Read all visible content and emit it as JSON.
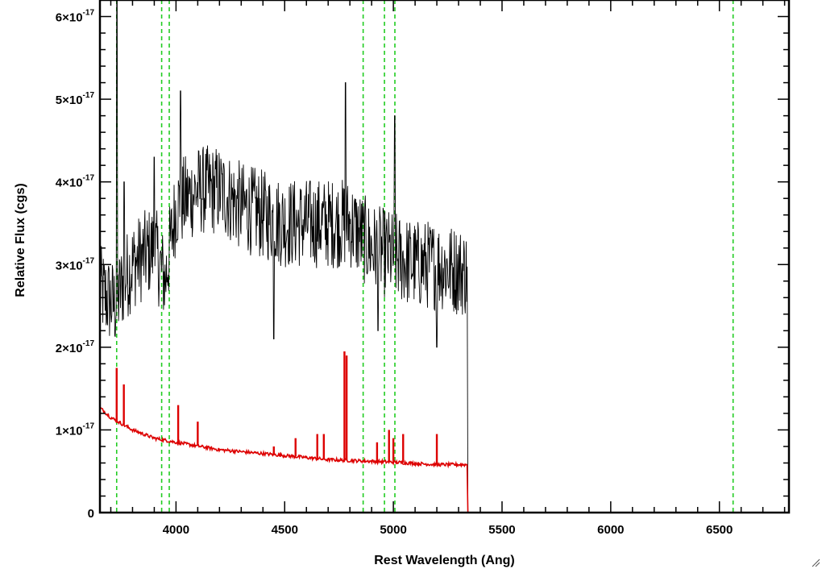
{
  "chart_data": {
    "type": "line",
    "xlabel": "Rest Wavelength (Ang)",
    "ylabel": "Relative Flux (cgs)",
    "xlim": [
      3650,
      6820
    ],
    "ylim": [
      0,
      6.2e-17
    ],
    "x_ticks": [
      {
        "value": 4000,
        "label": "4000"
      },
      {
        "value": 4500,
        "label": "4500"
      },
      {
        "value": 5000,
        "label": "5000"
      },
      {
        "value": 5500,
        "label": "5500"
      },
      {
        "value": 6000,
        "label": "6000"
      },
      {
        "value": 6500,
        "label": "6500"
      }
    ],
    "y_ticks": [
      {
        "value": 0,
        "mantissa": "0",
        "exponent": ""
      },
      {
        "value": 1e-17,
        "mantissa": "1×10",
        "exponent": "-17"
      },
      {
        "value": 2e-17,
        "mantissa": "2×10",
        "exponent": "-17"
      },
      {
        "value": 3e-17,
        "mantissa": "3×10",
        "exponent": "-17"
      },
      {
        "value": 4e-17,
        "mantissa": "4×10",
        "exponent": "-17"
      },
      {
        "value": 5e-17,
        "mantissa": "5×10",
        "exponent": "-17"
      },
      {
        "value": 6e-17,
        "mantissa": "6×10",
        "exponent": "-17"
      }
    ],
    "vertical_lines": [
      3727,
      3934,
      3969,
      4861,
      4959,
      5007,
      6563
    ],
    "grid": false,
    "series": [
      {
        "color": "#000000",
        "noise_amplitude": 5.5e-18,
        "x_range": [
          3650,
          5340
        ],
        "envelope": [
          [
            3650,
            2.7e-17
          ],
          [
            3680,
            2.6e-17
          ],
          [
            3720,
            2.5e-17
          ],
          [
            3760,
            2.8e-17
          ],
          [
            3800,
            3e-17
          ],
          [
            3900,
            3.2e-17
          ],
          [
            3950,
            2.8e-17
          ],
          [
            4000,
            3.7e-17
          ],
          [
            4100,
            3.9e-17
          ],
          [
            4200,
            3.9e-17
          ],
          [
            4300,
            3.7e-17
          ],
          [
            4500,
            3.5e-17
          ],
          [
            4700,
            3.5e-17
          ],
          [
            4800,
            3.5e-17
          ],
          [
            4900,
            3.2e-17
          ],
          [
            5000,
            3.1e-17
          ],
          [
            5100,
            3e-17
          ],
          [
            5200,
            3e-17
          ],
          [
            5340,
            2.9e-17
          ]
        ],
        "spikes": [
          [
            3727,
            6.2e-17
          ],
          [
            3760,
            4e-17
          ],
          [
            3900,
            4.3e-17
          ],
          [
            4020,
            5.1e-17
          ],
          [
            4780,
            5.2e-17
          ],
          [
            5007,
            4.8e-17
          ],
          [
            4450,
            2.1e-17
          ],
          [
            4930,
            2.2e-17
          ],
          [
            5200,
            2e-17
          ]
        ],
        "drop_to": 0,
        "drop_at": 5343
      },
      {
        "color": "#dd0000",
        "continuum": [
          [
            3650,
            1.27e-17
          ],
          [
            3700,
            1.15e-17
          ],
          [
            3800,
            1e-17
          ],
          [
            3900,
            9e-18
          ],
          [
            4000,
            8.5e-18
          ],
          [
            4200,
            7.6e-18
          ],
          [
            4500,
            6.9e-18
          ],
          [
            4700,
            6.4e-18
          ],
          [
            5000,
            6.1e-18
          ],
          [
            5200,
            5.8e-18
          ],
          [
            5340,
            5.8e-18
          ]
        ],
        "emission_lines": [
          [
            3727,
            1.75e-17
          ],
          [
            3760,
            1.55e-17
          ],
          [
            4010,
            1.3e-17
          ],
          [
            4100,
            1.1e-17
          ],
          [
            4450,
            8e-18
          ],
          [
            4550,
            9e-18
          ],
          [
            4650,
            9.5e-18
          ],
          [
            4680,
            9.5e-18
          ],
          [
            4775,
            1.95e-17
          ],
          [
            4785,
            1.9e-17
          ],
          [
            4925,
            8.5e-18
          ],
          [
            4980,
            1e-17
          ],
          [
            5000,
            9e-18
          ],
          [
            5045,
            9.5e-18
          ],
          [
            5200,
            9.5e-18
          ]
        ],
        "drop_to": 0,
        "drop_at": 5343
      }
    ]
  }
}
